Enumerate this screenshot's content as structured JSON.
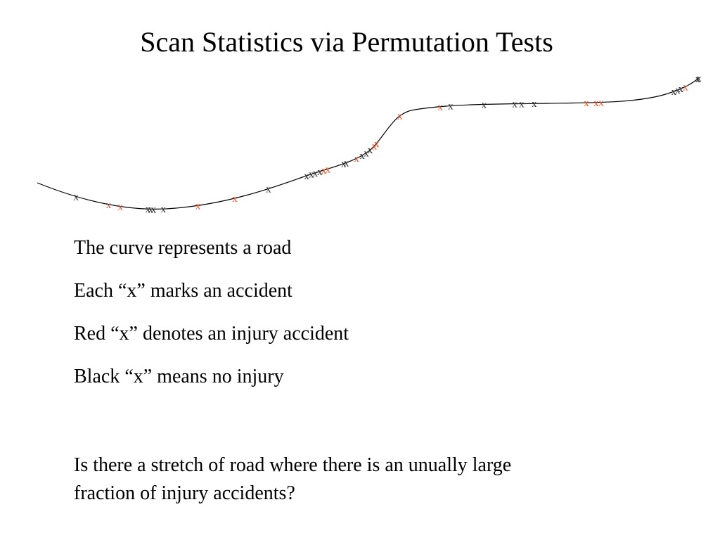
{
  "slide": {
    "title": "Scan Statistics via Permutation Tests"
  },
  "figure": {
    "road_color": "#000000",
    "injury_color": "#e8532a",
    "no_injury_color": "#2b2b2b",
    "marker_glyph": "x",
    "accidents": [
      {
        "t": 0.059,
        "injury": false
      },
      {
        "t": 0.107,
        "injury": true
      },
      {
        "t": 0.124,
        "injury": true
      },
      {
        "t": 0.164,
        "injury": false
      },
      {
        "t": 0.168,
        "injury": false
      },
      {
        "t": 0.172,
        "injury": false
      },
      {
        "t": 0.186,
        "injury": false
      },
      {
        "t": 0.236,
        "injury": true
      },
      {
        "t": 0.29,
        "injury": true
      },
      {
        "t": 0.34,
        "injury": false
      },
      {
        "t": 0.398,
        "injury": false
      },
      {
        "t": 0.405,
        "injury": false
      },
      {
        "t": 0.411,
        "injury": false
      },
      {
        "t": 0.418,
        "injury": false
      },
      {
        "t": 0.424,
        "injury": true
      },
      {
        "t": 0.43,
        "injury": true
      },
      {
        "t": 0.454,
        "injury": false
      },
      {
        "t": 0.458,
        "injury": false
      },
      {
        "t": 0.474,
        "injury": true
      },
      {
        "t": 0.483,
        "injury": false
      },
      {
        "t": 0.49,
        "injury": false
      },
      {
        "t": 0.497,
        "injury": false
      },
      {
        "t": 0.505,
        "injury": true
      },
      {
        "t": 0.51,
        "injury": true
      },
      {
        "t": 0.562,
        "injury": true
      },
      {
        "t": 0.622,
        "injury": true
      },
      {
        "t": 0.637,
        "injury": false
      },
      {
        "t": 0.685,
        "injury": false
      },
      {
        "t": 0.729,
        "injury": false
      },
      {
        "t": 0.739,
        "injury": false
      },
      {
        "t": 0.757,
        "injury": false
      },
      {
        "t": 0.832,
        "injury": true
      },
      {
        "t": 0.846,
        "injury": true
      },
      {
        "t": 0.853,
        "injury": true
      },
      {
        "t": 0.959,
        "injury": false
      },
      {
        "t": 0.965,
        "injury": false
      },
      {
        "t": 0.97,
        "injury": false
      },
      {
        "t": 0.977,
        "injury": true
      },
      {
        "t": 0.998,
        "injury": false
      },
      {
        "t": 1.013,
        "injury": false
      }
    ]
  },
  "bullets": [
    "The curve represents a road",
    "Each “x” marks an accident",
    "Red “x” denotes an injury accident",
    "Black “x” means no injury"
  ],
  "question": {
    "line1": "Is there a stretch of road where there is an unually large",
    "line2": "fraction of injury accidents?"
  }
}
